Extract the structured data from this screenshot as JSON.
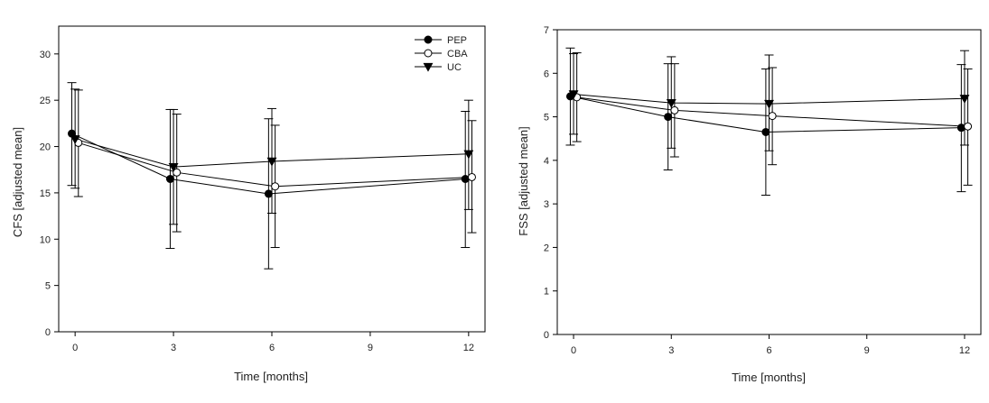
{
  "chart_data": [
    {
      "type": "line",
      "ylabel": "CFS [adjusted mean]",
      "xlabel": "Time [months]",
      "xlim": [
        -0.5,
        12.5
      ],
      "ylim": [
        0,
        33
      ],
      "xticks": [
        0,
        3,
        6,
        9,
        12
      ],
      "yticks": [
        0,
        5,
        10,
        15,
        20,
        25,
        30
      ],
      "legend": "top-right",
      "series": [
        {
          "name": "PEP",
          "marker": "filled-circle",
          "x_offset": -0.1,
          "x": [
            0,
            3,
            6,
            12
          ],
          "y": [
            21.4,
            16.5,
            14.9,
            16.5
          ],
          "err_low": [
            15.8,
            9.0,
            6.8,
            9.1
          ],
          "err_high": [
            26.9,
            24.0,
            23.0,
            23.8
          ]
        },
        {
          "name": "CBA",
          "marker": "open-circle",
          "x_offset": 0.1,
          "x": [
            0,
            3,
            6,
            12
          ],
          "y": [
            20.4,
            17.2,
            15.7,
            16.7
          ],
          "err_low": [
            14.6,
            10.8,
            9.1,
            10.7
          ],
          "err_high": [
            26.1,
            23.5,
            22.3,
            22.8
          ]
        },
        {
          "name": "UC",
          "marker": "filled-triangle-down",
          "x_offset": 0,
          "x": [
            0,
            3,
            6,
            12
          ],
          "y": [
            20.8,
            17.8,
            18.4,
            19.2
          ],
          "err_low": [
            15.5,
            11.6,
            12.8,
            13.2
          ],
          "err_high": [
            26.2,
            24.0,
            24.1,
            25.0
          ]
        }
      ]
    },
    {
      "type": "line",
      "ylabel": "FSS [adjusted mean]",
      "xlabel": "Time [months]",
      "xlim": [
        -0.5,
        12.5
      ],
      "ylim": [
        0,
        7
      ],
      "xticks": [
        0,
        3,
        6,
        9,
        12
      ],
      "yticks": [
        0,
        1,
        2,
        3,
        4,
        5,
        6,
        7
      ],
      "legend": "none",
      "series": [
        {
          "name": "PEP",
          "marker": "filled-circle",
          "x_offset": -0.1,
          "x": [
            0,
            3,
            6,
            12
          ],
          "y": [
            5.47,
            5.0,
            4.65,
            4.75
          ],
          "err_low": [
            4.35,
            3.78,
            3.2,
            3.28
          ],
          "err_high": [
            6.58,
            6.22,
            6.1,
            6.2
          ]
        },
        {
          "name": "CBA",
          "marker": "open-circle",
          "x_offset": 0.1,
          "x": [
            0,
            3,
            6,
            12
          ],
          "y": [
            5.45,
            5.15,
            5.02,
            4.78
          ],
          "err_low": [
            4.43,
            4.08,
            3.9,
            3.43
          ],
          "err_high": [
            6.47,
            6.22,
            6.13,
            6.1
          ]
        },
        {
          "name": "UC",
          "marker": "filled-triangle-down",
          "x_offset": 0,
          "x": [
            0,
            3,
            6,
            12
          ],
          "y": [
            5.52,
            5.32,
            5.3,
            5.42
          ],
          "err_low": [
            4.6,
            4.28,
            4.22,
            4.35
          ],
          "err_high": [
            6.45,
            6.38,
            6.42,
            6.52
          ]
        }
      ]
    }
  ]
}
